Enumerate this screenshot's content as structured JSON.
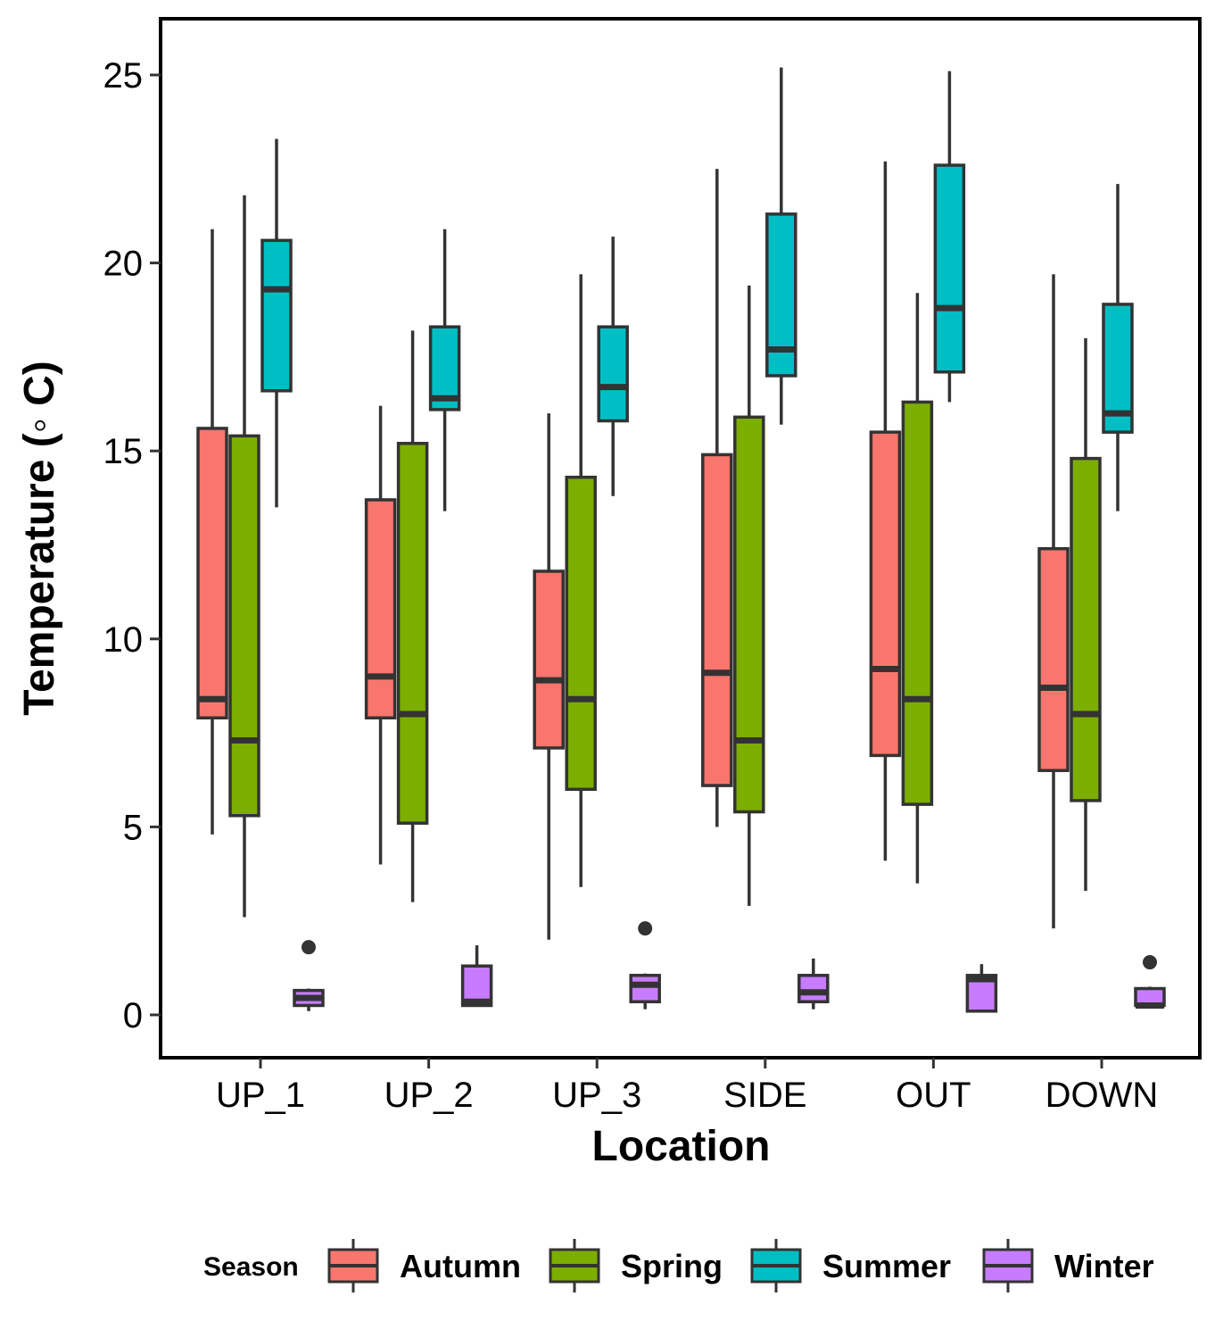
{
  "chart_data": {
    "type": "boxplot",
    "xlabel": "Location",
    "ylabel": "Temperature (◦ C)",
    "ylim": [
      -1,
      26.2
    ],
    "yticks": [
      0,
      5,
      10,
      15,
      20,
      25
    ],
    "categories": [
      "UP_1",
      "UP_2",
      "UP_3",
      "SIDE",
      "OUT",
      "DOWN"
    ],
    "legend": {
      "title": "Season",
      "position": "bottom"
    },
    "series": [
      {
        "name": "Autumn",
        "color": "#F8766D",
        "boxes": [
          {
            "min": 4.8,
            "q1": 7.9,
            "median": 8.4,
            "q3": 15.6,
            "max": 20.9,
            "outliers": []
          },
          {
            "min": 4.0,
            "q1": 7.9,
            "median": 9.0,
            "q3": 13.7,
            "max": 16.2,
            "outliers": []
          },
          {
            "min": 2.0,
            "q1": 7.1,
            "median": 8.9,
            "q3": 11.8,
            "max": 16.0,
            "outliers": []
          },
          {
            "min": 5.0,
            "q1": 6.1,
            "median": 9.1,
            "q3": 14.9,
            "max": 22.5,
            "outliers": []
          },
          {
            "min": 4.1,
            "q1": 6.9,
            "median": 9.2,
            "q3": 15.5,
            "max": 22.7,
            "outliers": []
          },
          {
            "min": 2.3,
            "q1": 6.5,
            "median": 8.7,
            "q3": 12.4,
            "max": 19.7,
            "outliers": []
          }
        ]
      },
      {
        "name": "Spring",
        "color": "#7CAE00",
        "boxes": [
          {
            "min": 2.6,
            "q1": 5.3,
            "median": 7.3,
            "q3": 15.4,
            "max": 21.8,
            "outliers": []
          },
          {
            "min": 3.0,
            "q1": 5.1,
            "median": 8.0,
            "q3": 15.2,
            "max": 18.2,
            "outliers": []
          },
          {
            "min": 3.4,
            "q1": 6.0,
            "median": 8.4,
            "q3": 14.3,
            "max": 19.7,
            "outliers": []
          },
          {
            "min": 2.9,
            "q1": 5.4,
            "median": 7.3,
            "q3": 15.9,
            "max": 19.4,
            "outliers": []
          },
          {
            "min": 3.5,
            "q1": 5.6,
            "median": 8.4,
            "q3": 16.3,
            "max": 19.2,
            "outliers": []
          },
          {
            "min": 3.3,
            "q1": 5.7,
            "median": 8.0,
            "q3": 14.8,
            "max": 18.0,
            "outliers": []
          }
        ]
      },
      {
        "name": "Summer",
        "color": "#00BFC4",
        "boxes": [
          {
            "min": 13.5,
            "q1": 16.6,
            "median": 19.3,
            "q3": 20.6,
            "max": 23.3,
            "outliers": []
          },
          {
            "min": 13.4,
            "q1": 16.1,
            "median": 16.4,
            "q3": 18.3,
            "max": 20.9,
            "outliers": []
          },
          {
            "min": 13.8,
            "q1": 15.8,
            "median": 16.7,
            "q3": 18.3,
            "max": 20.7,
            "outliers": []
          },
          {
            "min": 15.7,
            "q1": 17.0,
            "median": 17.7,
            "q3": 21.3,
            "max": 25.2,
            "outliers": []
          },
          {
            "min": 16.3,
            "q1": 17.1,
            "median": 18.8,
            "q3": 22.6,
            "max": 25.1,
            "outliers": []
          },
          {
            "min": 13.4,
            "q1": 15.5,
            "median": 16.0,
            "q3": 18.9,
            "max": 22.1,
            "outliers": []
          }
        ]
      },
      {
        "name": "Winter",
        "color": "#C77CFF",
        "boxes": [
          {
            "min": 0.1,
            "q1": 0.25,
            "median": 0.45,
            "q3": 0.65,
            "max": 0.7,
            "outliers": [
              1.8
            ]
          },
          {
            "min": 0.25,
            "q1": 0.25,
            "median": 0.35,
            "q3": 1.3,
            "max": 1.85,
            "outliers": []
          },
          {
            "min": 0.15,
            "q1": 0.35,
            "median": 0.8,
            "q3": 1.05,
            "max": 1.1,
            "outliers": [
              2.3
            ]
          },
          {
            "min": 0.15,
            "q1": 0.35,
            "median": 0.6,
            "q3": 1.05,
            "max": 1.5,
            "outliers": []
          },
          {
            "min": 0.1,
            "q1": 0.1,
            "median": 0.95,
            "q3": 1.05,
            "max": 1.35,
            "outliers": []
          },
          {
            "min": 0.2,
            "q1": 0.25,
            "median": 0.25,
            "q3": 0.7,
            "max": 0.75,
            "outliers": [
              1.4
            ]
          }
        ]
      }
    ]
  }
}
